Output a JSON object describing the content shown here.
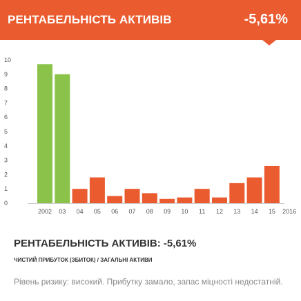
{
  "header": {
    "title": "РЕНТАБЕЛЬНІСТЬ АКТИВІВ",
    "value": "-5,61%"
  },
  "metric": {
    "title": "РЕНТАБЕЛЬНІСТЬ АКТИВІВ: -5,61%",
    "formula": "ЧИСТИЙ ПРИБУТОК (ЗБИТОК) / ЗАГАЛЬНІ АКТИВИ",
    "description": "Рівень ризику: високий. Прибутку замало, запас міцності недостатній."
  },
  "colors": {
    "accent": "#ea5b2f",
    "positive_bar": "#8bc34a",
    "negative_bar": "#ea5b2f"
  },
  "chart_data": {
    "type": "bar",
    "categories": [
      "2002",
      "03",
      "04",
      "05",
      "06",
      "07",
      "08",
      "09",
      "10",
      "11",
      "12",
      "13",
      "14",
      "15",
      "2016"
    ],
    "values": [
      9.7,
      9.0,
      1.0,
      1.8,
      0.5,
      1.0,
      0.7,
      0.3,
      0.4,
      1.0,
      0.4,
      1.4,
      1.8,
      2.6,
      null
    ],
    "bar_colors": [
      "#8bc34a",
      "#8bc34a",
      "#ea5b2f",
      "#ea5b2f",
      "#ea5b2f",
      "#ea5b2f",
      "#ea5b2f",
      "#ea5b2f",
      "#ea5b2f",
      "#ea5b2f",
      "#ea5b2f",
      "#ea5b2f",
      "#ea5b2f",
      "#ea5b2f",
      "#ea5b2f"
    ],
    "y_ticks": [
      "0",
      "1",
      "2",
      "3",
      "4",
      "5",
      "6",
      "7",
      "8",
      "9",
      "10"
    ],
    "ylim": [
      0,
      10
    ],
    "scale_gradient": [
      "#ea5b2f",
      "#f5d90a",
      "#8bc34a"
    ],
    "title": "",
    "xlabel": "",
    "ylabel": "",
    "grid": false
  }
}
